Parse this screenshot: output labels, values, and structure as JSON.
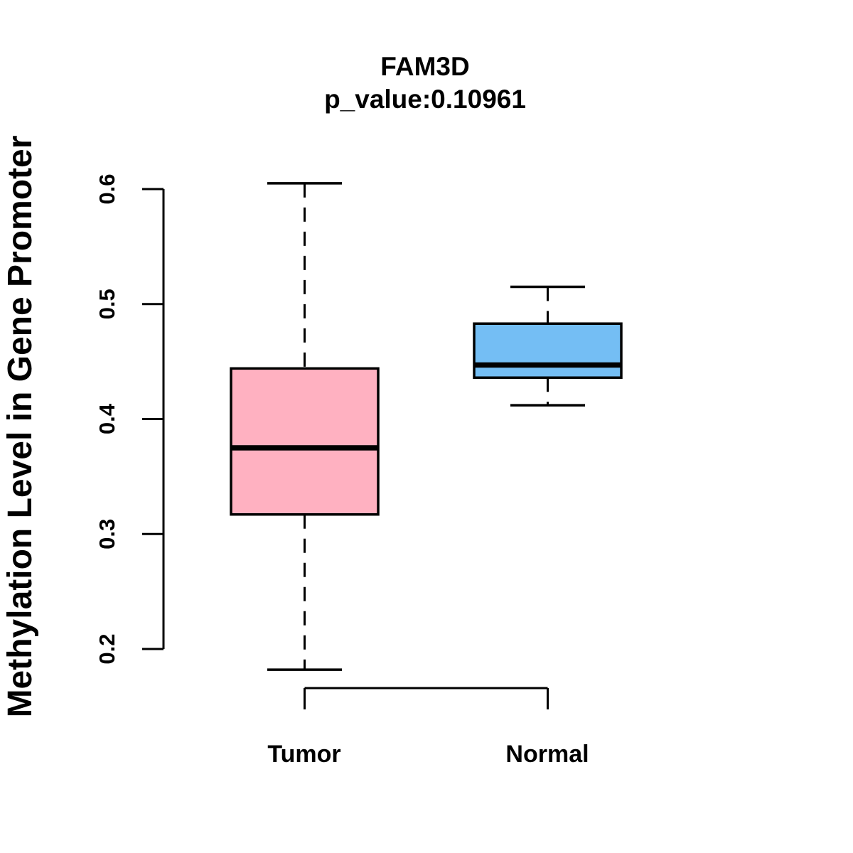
{
  "chart_data": {
    "type": "boxplot",
    "title": "FAM3D",
    "subtitle": "p_value:0.10961",
    "ylabel": "Methylation Level in Gene Promoter",
    "xlabel": "",
    "ylim": [
      0.2,
      0.6
    ],
    "yticks": [
      "0.2",
      "0.3",
      "0.4",
      "0.5",
      "0.6"
    ],
    "categories": [
      "Tumor",
      "Normal"
    ],
    "series": [
      {
        "name": "Tumor",
        "lower_whisker": 0.182,
        "q1": 0.317,
        "median": 0.375,
        "q3": 0.444,
        "upper_whisker": 0.605,
        "fill": "#FFB1C1"
      },
      {
        "name": "Normal",
        "lower_whisker": 0.412,
        "q1": 0.436,
        "median": 0.447,
        "q3": 0.483,
        "upper_whisker": 0.515,
        "fill": "#74BEF4"
      }
    ],
    "colors": {
      "stroke": "#000000",
      "background": "#FFFFFF",
      "tumor_fill": "#FFB1C1",
      "normal_fill": "#74BEF4"
    },
    "grid": false,
    "legend": "none",
    "whisker_style": "dashed"
  }
}
